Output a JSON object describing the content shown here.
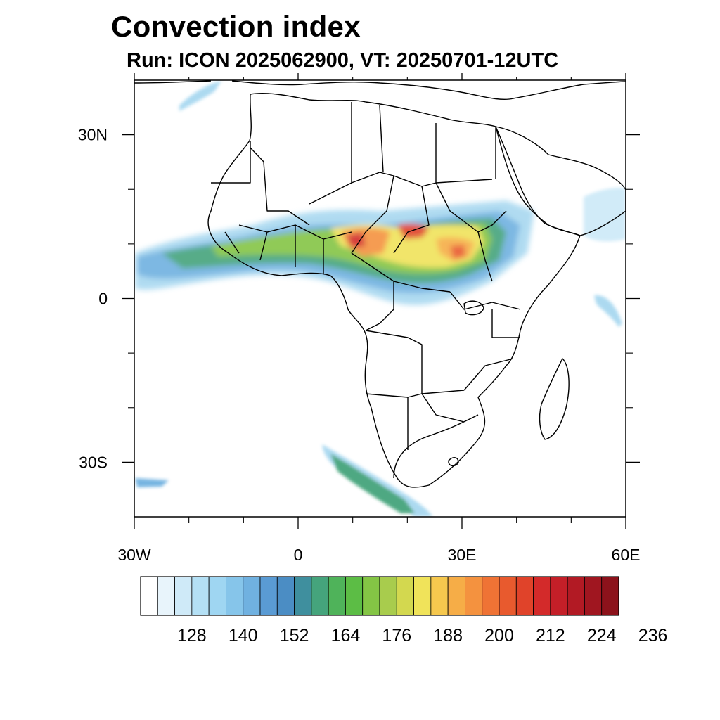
{
  "title": "Convection index",
  "subtitle": "Run: ICON 2025062900,  VT: 20250701-12UTC",
  "map": {
    "lon_range": [
      -30,
      60
    ],
    "lat_range": [
      -40,
      40
    ],
    "lon_ticks": [
      {
        "value": -30,
        "label": "30W"
      },
      {
        "value": 0,
        "label": "0"
      },
      {
        "value": 30,
        "label": "30E"
      },
      {
        "value": 60,
        "label": "60E"
      }
    ],
    "lat_ticks": [
      {
        "value": 30,
        "label": "30N"
      },
      {
        "value": 0,
        "label": "0"
      },
      {
        "value": -30,
        "label": "30S"
      }
    ],
    "minor_lon_ticks": [
      -20,
      -10,
      10,
      20,
      40,
      50
    ],
    "minor_lat_ticks": [
      20,
      10,
      -10,
      -20
    ]
  },
  "colorbar": {
    "colors": [
      "#ffffff",
      "#e8f4fb",
      "#cfeaf8",
      "#b4e0f5",
      "#9fd6f2",
      "#86c5ea",
      "#70b1e0",
      "#5a9bd4",
      "#4b8dc4",
      "#3f8f9e",
      "#45a47c",
      "#4fb35a",
      "#5cbd45",
      "#84c545",
      "#a8cc4d",
      "#d3d84f",
      "#f0e35a",
      "#f6c84e",
      "#f6ad47",
      "#f4923f",
      "#ef7335",
      "#e85a2e",
      "#e0432a",
      "#d32a2a",
      "#c41f28",
      "#b21a24",
      "#a01620",
      "#8c121b"
    ],
    "labels": [
      "128",
      "140",
      "152",
      "164",
      "176",
      "188",
      "200",
      "212",
      "224",
      "236"
    ]
  }
}
